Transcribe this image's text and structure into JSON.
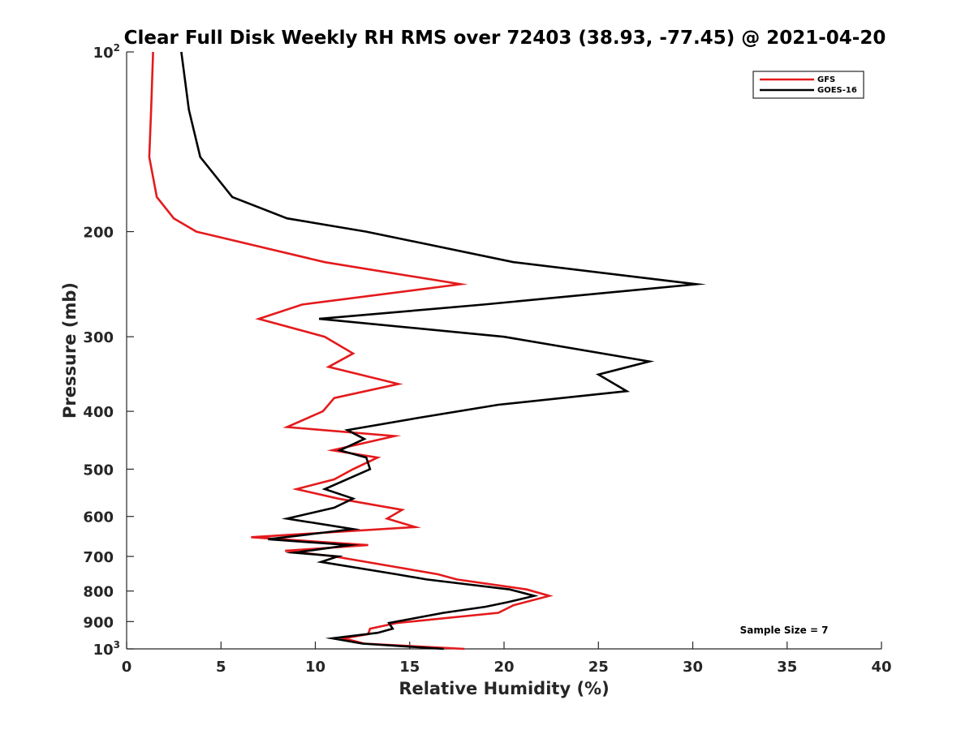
{
  "chart_data": {
    "type": "line",
    "title": "Clear Full Disk Weekly RH RMS over 72403 (38.93, -77.45) @ 2021-04-20",
    "xlabel": "Relative Humidity (%)",
    "ylabel": "Pressure (mb)",
    "xlim": [
      0,
      40
    ],
    "ylim": [
      100,
      1000
    ],
    "y_scale": "log",
    "y_reversed": true,
    "grid": false,
    "legend_position": "top-right",
    "x_ticks": [
      0,
      5,
      10,
      15,
      20,
      25,
      30,
      35,
      40
    ],
    "x_tick_labels": [
      "0",
      "5",
      "10",
      "15",
      "20",
      "25",
      "30",
      "35",
      "40"
    ],
    "y_ticks": [
      {
        "value": 100,
        "base": "10",
        "exp": "2"
      },
      {
        "value": 200,
        "label": "200"
      },
      {
        "value": 300,
        "label": "300"
      },
      {
        "value": 400,
        "label": "400"
      },
      {
        "value": 500,
        "label": "500"
      },
      {
        "value": 600,
        "label": "600"
      },
      {
        "value": 700,
        "label": "700"
      },
      {
        "value": 800,
        "label": "800"
      },
      {
        "value": 900,
        "label": "900"
      },
      {
        "value": 1000,
        "base": "10",
        "exp": "3"
      }
    ],
    "series": [
      {
        "name": "GFS",
        "color": "#e41a1c",
        "points": [
          [
            1.4,
            100
          ],
          [
            1.3,
            125
          ],
          [
            1.2,
            150
          ],
          [
            1.6,
            175
          ],
          [
            2.5,
            190
          ],
          [
            3.7,
            200
          ],
          [
            10.5,
            225
          ],
          [
            17.7,
            245
          ],
          [
            9.3,
            265
          ],
          [
            7.0,
            280
          ],
          [
            10.5,
            300
          ],
          [
            12.0,
            320
          ],
          [
            10.7,
            337
          ],
          [
            14.4,
            360
          ],
          [
            11.0,
            380
          ],
          [
            10.4,
            400
          ],
          [
            8.5,
            425
          ],
          [
            14.2,
            440
          ],
          [
            10.9,
            465
          ],
          [
            13.3,
            478
          ],
          [
            12.0,
            500
          ],
          [
            11.0,
            520
          ],
          [
            9.0,
            540
          ],
          [
            11.2,
            560
          ],
          [
            14.6,
            585
          ],
          [
            13.8,
            605
          ],
          [
            15.3,
            625
          ],
          [
            6.6,
            650
          ],
          [
            12.8,
            670
          ],
          [
            8.4,
            685
          ],
          [
            11.0,
            700
          ],
          [
            16.5,
            750
          ],
          [
            17.5,
            765
          ],
          [
            21.2,
            795
          ],
          [
            22.4,
            815
          ],
          [
            20.5,
            845
          ],
          [
            19.7,
            870
          ],
          [
            14.3,
            905
          ],
          [
            12.9,
            925
          ],
          [
            12.8,
            945
          ],
          [
            11.5,
            960
          ],
          [
            12.6,
            980
          ],
          [
            17.9,
            1000
          ]
        ]
      },
      {
        "name": "GOES-16",
        "color": "#000000",
        "points": [
          [
            2.9,
            100
          ],
          [
            3.3,
            125
          ],
          [
            3.9,
            150
          ],
          [
            5.6,
            175
          ],
          [
            8.5,
            190
          ],
          [
            12.7,
            200
          ],
          [
            20.5,
            225
          ],
          [
            30.2,
            245
          ],
          [
            18.9,
            265
          ],
          [
            10.2,
            280
          ],
          [
            20.0,
            300
          ],
          [
            27.7,
            330
          ],
          [
            25.0,
            347
          ],
          [
            26.5,
            370
          ],
          [
            19.7,
            390
          ],
          [
            15.5,
            410
          ],
          [
            11.7,
            430
          ],
          [
            12.6,
            445
          ],
          [
            11.3,
            465
          ],
          [
            12.7,
            478
          ],
          [
            12.9,
            500
          ],
          [
            10.5,
            540
          ],
          [
            12.0,
            560
          ],
          [
            11.0,
            580
          ],
          [
            8.5,
            605
          ],
          [
            12.0,
            630
          ],
          [
            7.5,
            655
          ],
          [
            11.8,
            670
          ],
          [
            8.9,
            690
          ],
          [
            11.2,
            700
          ],
          [
            10.3,
            715
          ],
          [
            14.3,
            750
          ],
          [
            15.9,
            765
          ],
          [
            20.3,
            795
          ],
          [
            21.6,
            815
          ],
          [
            20.2,
            835
          ],
          [
            19.0,
            850
          ],
          [
            16.8,
            870
          ],
          [
            13.9,
            905
          ],
          [
            14.1,
            925
          ],
          [
            13.3,
            940
          ],
          [
            10.9,
            960
          ],
          [
            12.5,
            980
          ],
          [
            16.8,
            1000
          ]
        ]
      }
    ],
    "annotations": [
      {
        "text": "Sample Size = 7",
        "x": 32.5,
        "y": 930
      }
    ]
  }
}
